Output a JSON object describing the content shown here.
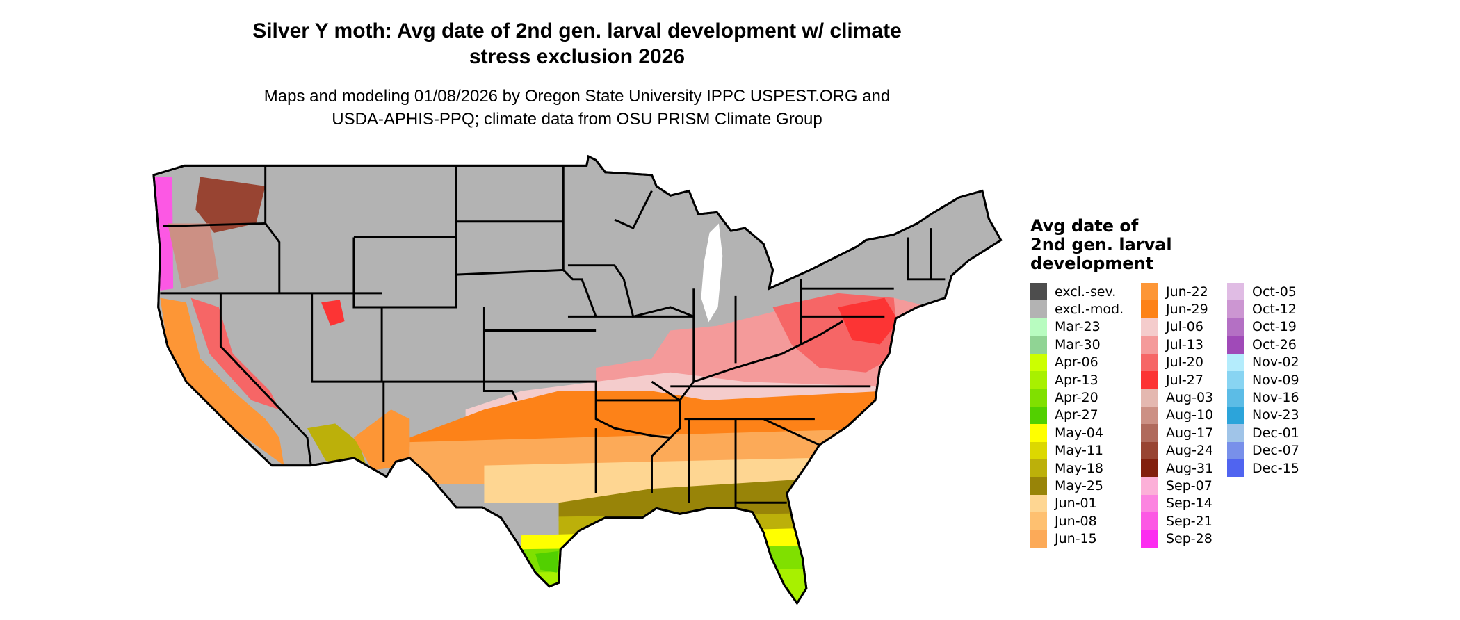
{
  "title": {
    "line1": "Silver Y moth: Avg date of 2nd gen. larval development w/ climate",
    "line2": "stress exclusion 2026"
  },
  "subtitle": {
    "line1": "Maps and modeling 01/08/2026 by Oregon State University IPPC USPEST.ORG and",
    "line2": "USDA-APHIS-PPQ; climate data from OSU PRISM Climate Group"
  },
  "legend": {
    "title_lines": [
      "Avg date of",
      "2nd gen. larval",
      "development"
    ],
    "columns": [
      [
        {
          "label": "excl.-sev.",
          "color": "#4d4d4d"
        },
        {
          "label": "excl.-mod.",
          "color": "#b3b3b3"
        },
        {
          "label": "Mar-23",
          "color": "#b8fcc0"
        },
        {
          "label": "Mar-30",
          "color": "#90d494"
        },
        {
          "label": "Apr-06",
          "color": "#ccff00"
        },
        {
          "label": "Apr-13",
          "color": "#a8f000"
        },
        {
          "label": "Apr-20",
          "color": "#80e000"
        },
        {
          "label": "Apr-27",
          "color": "#52d000"
        },
        {
          "label": "May-04",
          "color": "#ffff00"
        },
        {
          "label": "May-11",
          "color": "#dcd800"
        },
        {
          "label": "May-18",
          "color": "#bcb00a"
        },
        {
          "label": "May-25",
          "color": "#988408"
        },
        {
          "label": "Jun-01",
          "color": "#fed692"
        },
        {
          "label": "Jun-08",
          "color": "#fec070"
        },
        {
          "label": "Jun-15",
          "color": "#fcaa58"
        }
      ],
      [
        {
          "label": "Jun-22",
          "color": "#fd9636"
        },
        {
          "label": "Jun-29",
          "color": "#fd8218"
        },
        {
          "label": "Jul-06",
          "color": "#f4cccc"
        },
        {
          "label": "Jul-13",
          "color": "#f49a9a"
        },
        {
          "label": "Jul-20",
          "color": "#f66666"
        },
        {
          "label": "Jul-27",
          "color": "#fc3434"
        },
        {
          "label": "Aug-03",
          "color": "#e4b8b0"
        },
        {
          "label": "Aug-10",
          "color": "#cc9084"
        },
        {
          "label": "Aug-17",
          "color": "#b06a5c"
        },
        {
          "label": "Aug-24",
          "color": "#984432"
        },
        {
          "label": "Aug-31",
          "color": "#82200e"
        },
        {
          "label": "Sep-07",
          "color": "#fcb0d8"
        },
        {
          "label": "Sep-14",
          "color": "#fc84e0"
        },
        {
          "label": "Sep-21",
          "color": "#fc58e4"
        },
        {
          "label": "Sep-28",
          "color": "#fc2cf0"
        }
      ],
      [
        {
          "label": "Oct-05",
          "color": "#e0bce4"
        },
        {
          "label": "Oct-12",
          "color": "#cc96d2"
        },
        {
          "label": "Oct-19",
          "color": "#b470c4"
        },
        {
          "label": "Oct-26",
          "color": "#a04ab8"
        },
        {
          "label": "Nov-02",
          "color": "#b4ecfc"
        },
        {
          "label": "Nov-09",
          "color": "#88d4f2"
        },
        {
          "label": "Nov-16",
          "color": "#5cbce6"
        },
        {
          "label": "Nov-23",
          "color": "#2ca4da"
        },
        {
          "label": "Dec-01",
          "color": "#a0c4e8"
        },
        {
          "label": "Dec-07",
          "color": "#7890ea"
        },
        {
          "label": "Dec-15",
          "color": "#5064f0"
        }
      ]
    ]
  },
  "colors": {
    "excluded": "#b3b3b3",
    "border": "#000000"
  }
}
